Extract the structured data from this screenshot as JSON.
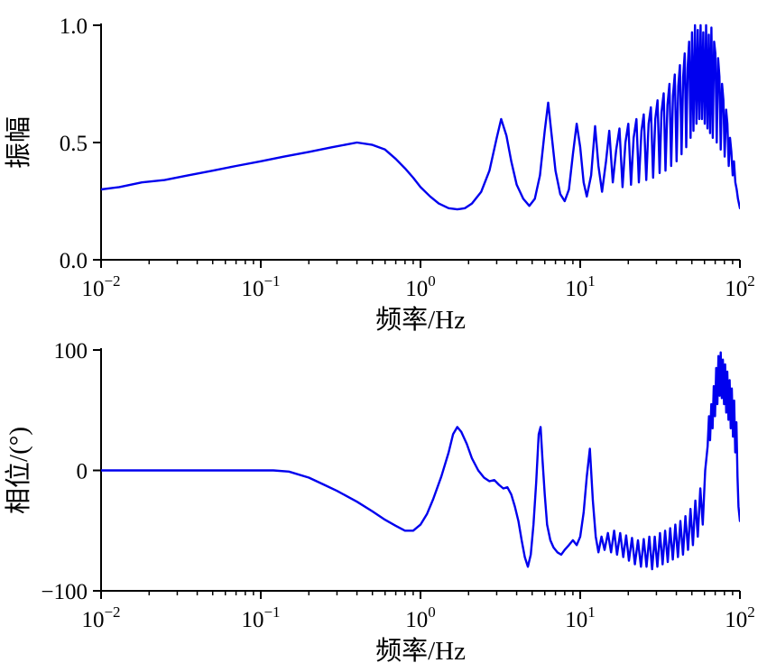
{
  "page": {
    "background": "#ffffff"
  },
  "chart_data": [
    {
      "id": "amplitude",
      "type": "line",
      "xscale": "log",
      "xlim": [
        0.01,
        100
      ],
      "ylim": [
        0,
        1.0
      ],
      "xticks": [
        0.01,
        0.1,
        1,
        10,
        100
      ],
      "yticks": [
        0,
        0.5,
        1.0
      ],
      "ytick_labels": [
        "0.0",
        "0.5",
        "1.0"
      ],
      "xlabel": "频率/Hz",
      "ylabel": "振幅",
      "grid": false,
      "legend": "none",
      "line_color": "#0000ee",
      "axis_color": "#000000",
      "series": [
        {
          "name": "amplitude-response",
          "points": [
            [
              0.01,
              0.3
            ],
            [
              0.013,
              0.31
            ],
            [
              0.018,
              0.33
            ],
            [
              0.025,
              0.34
            ],
            [
              0.035,
              0.36
            ],
            [
              0.05,
              0.38
            ],
            [
              0.07,
              0.4
            ],
            [
              0.1,
              0.42
            ],
            [
              0.14,
              0.44
            ],
            [
              0.2,
              0.46
            ],
            [
              0.28,
              0.48
            ],
            [
              0.4,
              0.5
            ],
            [
              0.5,
              0.49
            ],
            [
              0.6,
              0.47
            ],
            [
              0.7,
              0.43
            ],
            [
              0.8,
              0.39
            ],
            [
              0.9,
              0.35
            ],
            [
              1.0,
              0.31
            ],
            [
              1.15,
              0.27
            ],
            [
              1.3,
              0.24
            ],
            [
              1.5,
              0.22
            ],
            [
              1.7,
              0.215
            ],
            [
              1.9,
              0.22
            ],
            [
              2.1,
              0.24
            ],
            [
              2.4,
              0.29
            ],
            [
              2.7,
              0.38
            ],
            [
              3.0,
              0.52
            ],
            [
              3.2,
              0.6
            ],
            [
              3.45,
              0.53
            ],
            [
              3.7,
              0.42
            ],
            [
              4.0,
              0.32
            ],
            [
              4.4,
              0.26
            ],
            [
              4.8,
              0.23
            ],
            [
              5.2,
              0.26
            ],
            [
              5.6,
              0.36
            ],
            [
              6.0,
              0.55
            ],
            [
              6.3,
              0.67
            ],
            [
              6.6,
              0.54
            ],
            [
              7.0,
              0.38
            ],
            [
              7.5,
              0.28
            ],
            [
              8.0,
              0.25
            ],
            [
              8.5,
              0.3
            ],
            [
              9.0,
              0.45
            ],
            [
              9.5,
              0.58
            ],
            [
              10.0,
              0.48
            ],
            [
              10.5,
              0.33
            ],
            [
              11.0,
              0.27
            ],
            [
              11.7,
              0.36
            ],
            [
              12.4,
              0.57
            ],
            [
              13.0,
              0.4
            ],
            [
              13.7,
              0.29
            ],
            [
              14.5,
              0.42
            ],
            [
              15.2,
              0.55
            ],
            [
              16.0,
              0.33
            ],
            [
              16.8,
              0.47
            ],
            [
              17.6,
              0.56
            ],
            [
              18.4,
              0.31
            ],
            [
              19.2,
              0.5
            ],
            [
              20.0,
              0.58
            ],
            [
              20.8,
              0.32
            ],
            [
              21.6,
              0.52
            ],
            [
              22.5,
              0.6
            ],
            [
              23.3,
              0.33
            ],
            [
              24.2,
              0.55
            ],
            [
              25.0,
              0.62
            ],
            [
              25.9,
              0.34
            ],
            [
              26.8,
              0.58
            ],
            [
              27.7,
              0.65
            ],
            [
              28.6,
              0.35
            ],
            [
              29.5,
              0.6
            ],
            [
              30.5,
              0.68
            ],
            [
              31.4,
              0.37
            ],
            [
              32.3,
              0.63
            ],
            [
              33.3,
              0.71
            ],
            [
              34.2,
              0.38
            ],
            [
              35.2,
              0.66
            ],
            [
              36.2,
              0.75
            ],
            [
              37.1,
              0.4
            ],
            [
              38.1,
              0.7
            ],
            [
              39.1,
              0.79
            ],
            [
              40.1,
              0.42
            ],
            [
              41.1,
              0.74
            ],
            [
              42.1,
              0.83
            ],
            [
              43.1,
              0.45
            ],
            [
              44.1,
              0.78
            ],
            [
              45.1,
              0.88
            ],
            [
              46.1,
              0.48
            ],
            [
              47.1,
              0.82
            ],
            [
              48.1,
              0.93
            ],
            [
              49.1,
              0.52
            ],
            [
              50.1,
              0.97
            ],
            [
              51.2,
              0.55
            ],
            [
              52.3,
              1.0
            ],
            [
              53.4,
              0.58
            ],
            [
              54.5,
              0.98
            ],
            [
              55.6,
              0.6
            ],
            [
              56.7,
              1.0
            ],
            [
              57.8,
              0.6
            ],
            [
              59.0,
              0.97
            ],
            [
              60.2,
              0.58
            ],
            [
              61.4,
              1.0
            ],
            [
              62.6,
              0.56
            ],
            [
              63.8,
              0.96
            ],
            [
              65.0,
              0.54
            ],
            [
              66.3,
              0.99
            ],
            [
              67.6,
              0.52
            ],
            [
              68.9,
              0.93
            ],
            [
              70.2,
              0.88
            ],
            [
              71.6,
              0.5
            ],
            [
              73.0,
              0.86
            ],
            [
              74.4,
              0.78
            ],
            [
              75.8,
              0.47
            ],
            [
              77.3,
              0.75
            ],
            [
              78.8,
              0.68
            ],
            [
              80.3,
              0.44
            ],
            [
              81.9,
              0.64
            ],
            [
              83.5,
              0.58
            ],
            [
              85.1,
              0.4
            ],
            [
              86.7,
              0.52
            ],
            [
              88.4,
              0.46
            ],
            [
              90.1,
              0.36
            ],
            [
              91.8,
              0.42
            ],
            [
              93.6,
              0.33
            ],
            [
              95.4,
              0.3
            ],
            [
              97.2,
              0.26
            ],
            [
              100,
              0.22
            ]
          ]
        }
      ]
    },
    {
      "id": "phase",
      "type": "line",
      "xscale": "log",
      "xlim": [
        0.01,
        100
      ],
      "ylim": [
        -100,
        100
      ],
      "xticks": [
        0.01,
        0.1,
        1,
        10,
        100
      ],
      "yticks": [
        -100,
        0,
        100
      ],
      "ytick_labels": [
        "−100",
        "0",
        "100"
      ],
      "xlabel": "频率/Hz",
      "ylabel": "相位/(°)",
      "grid": false,
      "legend": "none",
      "line_color": "#0000ee",
      "axis_color": "#000000",
      "series": [
        {
          "name": "phase-response",
          "points": [
            [
              0.01,
              0
            ],
            [
              0.02,
              0
            ],
            [
              0.05,
              0
            ],
            [
              0.08,
              0
            ],
            [
              0.12,
              0
            ],
            [
              0.15,
              -1
            ],
            [
              0.2,
              -6
            ],
            [
              0.25,
              -12
            ],
            [
              0.3,
              -17
            ],
            [
              0.4,
              -26
            ],
            [
              0.5,
              -34
            ],
            [
              0.6,
              -41
            ],
            [
              0.7,
              -46
            ],
            [
              0.8,
              -50
            ],
            [
              0.9,
              -50
            ],
            [
              1.0,
              -45
            ],
            [
              1.1,
              -36
            ],
            [
              1.2,
              -24
            ],
            [
              1.35,
              -5
            ],
            [
              1.5,
              15
            ],
            [
              1.6,
              30
            ],
            [
              1.7,
              36
            ],
            [
              1.8,
              32
            ],
            [
              1.95,
              22
            ],
            [
              2.1,
              10
            ],
            [
              2.3,
              0
            ],
            [
              2.5,
              -6
            ],
            [
              2.7,
              -9
            ],
            [
              2.9,
              -8
            ],
            [
              3.1,
              -12
            ],
            [
              3.3,
              -15
            ],
            [
              3.5,
              -14
            ],
            [
              3.7,
              -20
            ],
            [
              3.9,
              -30
            ],
            [
              4.1,
              -42
            ],
            [
              4.3,
              -58
            ],
            [
              4.5,
              -72
            ],
            [
              4.7,
              -80
            ],
            [
              4.9,
              -70
            ],
            [
              5.1,
              -45
            ],
            [
              5.3,
              -10
            ],
            [
              5.5,
              30
            ],
            [
              5.65,
              36
            ],
            [
              5.8,
              10
            ],
            [
              6.0,
              -20
            ],
            [
              6.2,
              -45
            ],
            [
              6.5,
              -58
            ],
            [
              6.8,
              -64
            ],
            [
              7.2,
              -68
            ],
            [
              7.6,
              -70
            ],
            [
              8.0,
              -66
            ],
            [
              8.5,
              -62
            ],
            [
              9.0,
              -58
            ],
            [
              9.5,
              -62
            ],
            [
              10.0,
              -55
            ],
            [
              10.5,
              -35
            ],
            [
              11.0,
              -5
            ],
            [
              11.5,
              18
            ],
            [
              12.0,
              -25
            ],
            [
              12.5,
              -55
            ],
            [
              13.0,
              -68
            ],
            [
              13.6,
              -55
            ],
            [
              14.2,
              -66
            ],
            [
              14.9,
              -52
            ],
            [
              15.6,
              -68
            ],
            [
              16.3,
              -50
            ],
            [
              17.0,
              -70
            ],
            [
              17.8,
              -52
            ],
            [
              18.6,
              -72
            ],
            [
              19.4,
              -54
            ],
            [
              20.2,
              -75
            ],
            [
              21.1,
              -56
            ],
            [
              22.0,
              -78
            ],
            [
              23.0,
              -58
            ],
            [
              24.0,
              -80
            ],
            [
              25.0,
              -57
            ],
            [
              26.0,
              -80
            ],
            [
              27.1,
              -55
            ],
            [
              28.2,
              -82
            ],
            [
              29.3,
              -55
            ],
            [
              30.4,
              -80
            ],
            [
              31.6,
              -52
            ],
            [
              32.8,
              -78
            ],
            [
              34.0,
              -50
            ],
            [
              35.3,
              -76
            ],
            [
              36.6,
              -48
            ],
            [
              38.0,
              -74
            ],
            [
              39.4,
              -45
            ],
            [
              40.9,
              -72
            ],
            [
              42.4,
              -42
            ],
            [
              44.0,
              -70
            ],
            [
              45.6,
              -38
            ],
            [
              47.3,
              -66
            ],
            [
              49.0,
              -32
            ],
            [
              50.8,
              -62
            ],
            [
              52.6,
              -25
            ],
            [
              54.5,
              -55
            ],
            [
              56.5,
              -15
            ],
            [
              58.5,
              -45
            ],
            [
              60.6,
              0
            ],
            [
              62.8,
              20
            ],
            [
              64.0,
              45
            ],
            [
              65.0,
              25
            ],
            [
              66.2,
              55
            ],
            [
              67.4,
              35
            ],
            [
              68.6,
              70
            ],
            [
              69.8,
              45
            ],
            [
              71.0,
              85
            ],
            [
              72.2,
              55
            ],
            [
              73.4,
              95
            ],
            [
              74.6,
              62
            ],
            [
              75.8,
              98
            ],
            [
              77.0,
              60
            ],
            [
              78.2,
              92
            ],
            [
              79.5,
              55
            ],
            [
              80.8,
              88
            ],
            [
              82.1,
              48
            ],
            [
              83.4,
              82
            ],
            [
              84.8,
              42
            ],
            [
              86.2,
              75
            ],
            [
              87.6,
              35
            ],
            [
              89.0,
              68
            ],
            [
              90.5,
              28
            ],
            [
              92.0,
              58
            ],
            [
              93.5,
              15
            ],
            [
              95.0,
              40
            ],
            [
              96.5,
              -5
            ],
            [
              98.0,
              -30
            ],
            [
              100,
              -42
            ]
          ]
        }
      ]
    }
  ]
}
